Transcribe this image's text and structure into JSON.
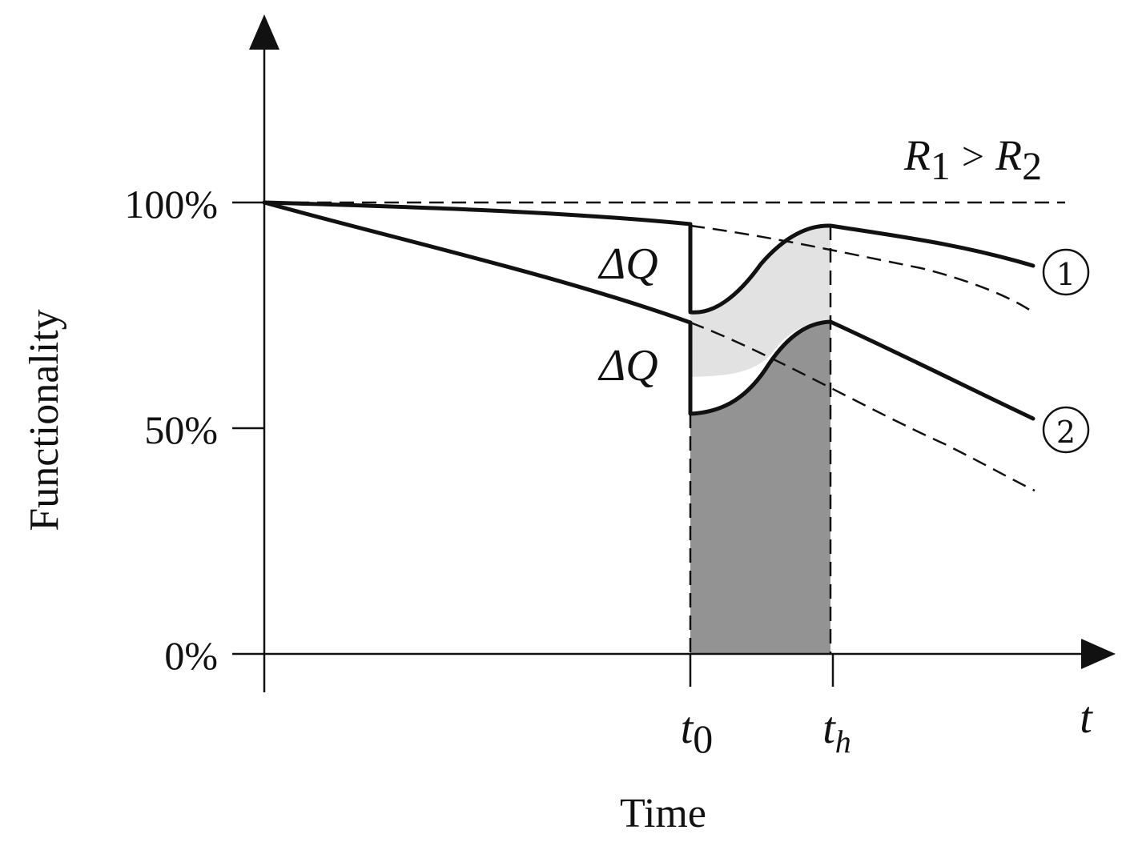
{
  "axes": {
    "y_label": "Functionality",
    "x_label": "Time",
    "x_symbol": "t",
    "y_ticks": [
      "100%",
      "50%",
      "0%"
    ],
    "x_ticks": [
      {
        "base": "t",
        "sub": "0"
      },
      {
        "base": "t",
        "sub": "h"
      }
    ]
  },
  "annotations": {
    "relation": {
      "a": "R",
      "a_sub": "1",
      "op": ">",
      "b": "R",
      "b_sub": "2"
    },
    "delta_q_upper": "ΔQ",
    "delta_q_lower": "ΔQ"
  },
  "curves": [
    {
      "marker": "①"
    },
    {
      "marker": "②"
    }
  ]
}
